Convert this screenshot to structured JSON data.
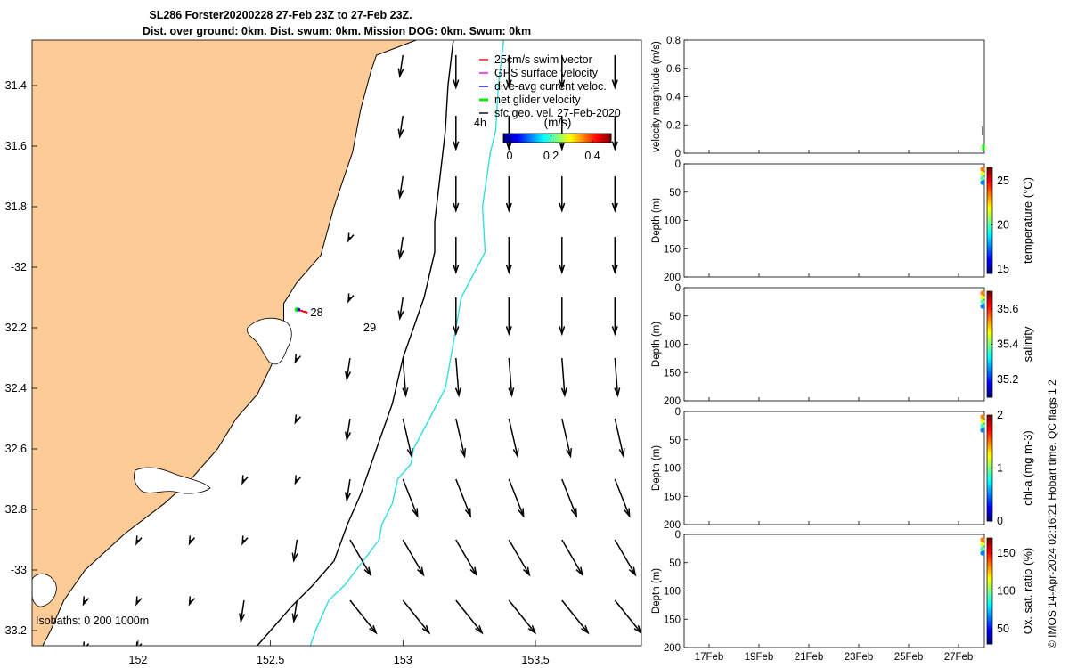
{
  "title": {
    "line1": "SL286 Forster20200228 27-Feb 23Z to 27-Feb 23Z.",
    "line2": "Dist. over ground: 0km. Dist. swum: 0km. Mission DOG: 0km. Swum: 0km"
  },
  "colors": {
    "land": "#fdcb96",
    "isobath_200": "#000000",
    "isobath_1000": "#33dddd",
    "swim_vector": "#ff0000",
    "gps_surface_velocity": "#ff00ff",
    "dive_avg_current": "#0000ff",
    "net_glider_velocity": "#00ee00",
    "sfc_geo_vel": "#000000",
    "colormap": [
      "#00007f",
      "#0000ff",
      "#007fff",
      "#00ffff",
      "#7fff7f",
      "#ffff00",
      "#ff7f00",
      "#ff0000",
      "#7f0000"
    ]
  },
  "legend": {
    "items": [
      {
        "label": "25cm/s swim vector",
        "color": "#ff0000"
      },
      {
        "label": "GPS surface velocity",
        "color": "#ff00ff"
      },
      {
        "label": "dive-avg current veloc.",
        "color": "#0000ff"
      },
      {
        "label": "net glider velocity",
        "color": "#00ee00"
      },
      {
        "label": "sfc geo. vel. 27-Feb-2020",
        "color": "#000000"
      }
    ],
    "time_label": "4h",
    "colorbar_unit": "(m/s)",
    "colorbar_ticks": [
      "0",
      "0.2",
      "0.4"
    ],
    "colorbar_tick_values": [
      0,
      0.2,
      0.4
    ],
    "colorbar_range": [
      -0.03,
      0.49
    ]
  },
  "isobath_label": "Isobaths: 0   200  1000m",
  "day_labels": [
    {
      "text": "28",
      "lon": 152.63,
      "lat": -32.15
    },
    {
      "text": "29",
      "lon": 152.83,
      "lat": -32.2
    }
  ],
  "chart_data": [
    {
      "type": "map",
      "xlim": [
        151.6,
        153.9
      ],
      "ylim": [
        -33.25,
        -31.25
      ],
      "x_ticks": [
        152,
        152.5,
        153,
        153.5
      ],
      "x_tick_labels": [
        "152",
        "152.5",
        "153",
        "153.5"
      ],
      "y_ticks": [
        -31.4,
        -31.6,
        -31.8,
        -32,
        -32.2,
        -32.4,
        -32.6,
        -32.8,
        -33,
        -33.2
      ],
      "y_tick_labels": [
        "31.4",
        "31.6",
        "31.8",
        "-32",
        "32.2",
        "32.4",
        "32.6",
        "32.8",
        "-33",
        "33.2"
      ],
      "coastline": [
        [
          153.05,
          -31.25
        ],
        [
          152.9,
          -31.3
        ],
        [
          152.88,
          -31.35
        ],
        [
          152.84,
          -31.48
        ],
        [
          152.81,
          -31.62
        ],
        [
          152.74,
          -31.8
        ],
        [
          152.69,
          -31.96
        ],
        [
          152.6,
          -32.05
        ],
        [
          152.55,
          -32.12
        ],
        [
          152.55,
          -32.22
        ],
        [
          152.5,
          -32.33
        ],
        [
          152.45,
          -32.42
        ],
        [
          152.37,
          -32.5
        ],
        [
          152.3,
          -32.6
        ],
        [
          152.2,
          -32.7
        ],
        [
          152.1,
          -32.78
        ],
        [
          151.95,
          -32.88
        ],
        [
          151.8,
          -33.0
        ],
        [
          151.72,
          -33.1
        ],
        [
          151.67,
          -33.2
        ],
        [
          151.64,
          -33.25
        ]
      ],
      "isobath_200": [
        [
          153.19,
          -31.25
        ],
        [
          153.17,
          -31.4
        ],
        [
          153.16,
          -31.55
        ],
        [
          153.14,
          -31.7
        ],
        [
          153.12,
          -31.85
        ],
        [
          153.12,
          -31.95
        ],
        [
          153.08,
          -32.1
        ],
        [
          153.0,
          -32.3
        ],
        [
          152.96,
          -32.45
        ],
        [
          152.9,
          -32.6
        ],
        [
          152.84,
          -32.75
        ],
        [
          152.79,
          -32.85
        ],
        [
          152.74,
          -32.97
        ],
        [
          152.66,
          -33.05
        ],
        [
          152.58,
          -33.12
        ],
        [
          152.5,
          -33.2
        ],
        [
          152.45,
          -33.25
        ]
      ],
      "isobath_1000": [
        [
          153.38,
          -31.25
        ],
        [
          153.36,
          -31.4
        ],
        [
          153.35,
          -31.55
        ],
        [
          153.33,
          -31.62
        ],
        [
          153.3,
          -31.8
        ],
        [
          153.31,
          -31.95
        ],
        [
          153.22,
          -32.1
        ],
        [
          153.19,
          -32.25
        ],
        [
          153.16,
          -32.4
        ],
        [
          153.1,
          -32.5
        ],
        [
          153.04,
          -32.6
        ],
        [
          153.03,
          -32.65
        ],
        [
          152.98,
          -32.7
        ],
        [
          152.96,
          -32.78
        ],
        [
          152.92,
          -32.85
        ],
        [
          152.91,
          -32.9
        ],
        [
          152.85,
          -32.97
        ],
        [
          152.78,
          -33.05
        ],
        [
          152.72,
          -33.1
        ],
        [
          152.67,
          -33.2
        ],
        [
          152.65,
          -33.25
        ]
      ],
      "glider_track": [
        [
          152.6,
          -32.14
        ],
        [
          152.64,
          -32.15
        ]
      ],
      "geo_vel_grid": {
        "lons": [
          151.8,
          152.0,
          152.2,
          152.4,
          152.6,
          152.8,
          153.0,
          153.2,
          153.4,
          153.6,
          153.8
        ],
        "lats": [
          -31.3,
          -31.5,
          -31.7,
          -31.9,
          -32.1,
          -32.3,
          -32.5,
          -32.7,
          -32.9,
          -33.1,
          -33.25
        ],
        "note_units": "u,v in m/s"
      }
    },
    {
      "type": "line",
      "ylabel": "velocity magnitude (m/s)",
      "ylim": [
        0,
        0.8
      ],
      "y_ticks": [
        0,
        0.2,
        0.4,
        0.6,
        0.8
      ],
      "y_tick_labels": [
        "0",
        "0.2",
        "0.4",
        "0.6",
        "0.8"
      ],
      "series": [
        {
          "x": [
            "27Feb"
          ],
          "values": [
            0.02
          ]
        }
      ]
    },
    {
      "type": "scatter",
      "ylabel": "Depth (m)",
      "ylim": [
        0,
        200
      ],
      "y_ticks": [
        0,
        50,
        100,
        150,
        200
      ],
      "y_tick_labels": [
        "0",
        "50",
        "100",
        "150",
        "200"
      ],
      "colorbar_label": "temperature (°C)",
      "colorbar_range": [
        14.5,
        26.5
      ],
      "colorbar_ticks": [
        15,
        20,
        25
      ],
      "colorbar_tick_labels": [
        "15",
        "20",
        "25"
      ]
    },
    {
      "type": "scatter",
      "ylabel": "Depth (m)",
      "ylim": [
        0,
        200
      ],
      "y_ticks": [
        0,
        50,
        100,
        150,
        200
      ],
      "y_tick_labels": [
        "0",
        "50",
        "100",
        "150",
        "200"
      ],
      "colorbar_label": "salinity",
      "colorbar_range": [
        35.1,
        35.7
      ],
      "colorbar_ticks": [
        35.2,
        35.4,
        35.6
      ],
      "colorbar_tick_labels": [
        "35.2",
        "35.4",
        "35.6"
      ]
    },
    {
      "type": "scatter",
      "ylabel": "Depth (m)",
      "ylim": [
        0,
        200
      ],
      "y_ticks": [
        0,
        50,
        100,
        150,
        200
      ],
      "y_tick_labels": [
        "0",
        "50",
        "100",
        "150",
        "200"
      ],
      "colorbar_label": "chl-a (mg m-3)",
      "colorbar_range": [
        0,
        2
      ],
      "colorbar_ticks": [
        0,
        1,
        2
      ],
      "colorbar_tick_labels": [
        "0",
        "1",
        "2"
      ]
    },
    {
      "type": "scatter",
      "ylabel": "Depth (m)",
      "ylim": [
        0,
        200
      ],
      "y_ticks": [
        0,
        50,
        100,
        150,
        200
      ],
      "y_tick_labels": [
        "0",
        "50",
        "100",
        "150",
        "200"
      ],
      "colorbar_label": "Ox. sat. ratio (%)",
      "colorbar_range": [
        30,
        170
      ],
      "colorbar_ticks": [
        50,
        100,
        150
      ],
      "colorbar_tick_labels": [
        "50",
        "100",
        "150"
      ],
      "x_tick_labels": [
        "17Feb",
        "19Feb",
        "21Feb",
        "23Feb",
        "25Feb",
        "27Feb"
      ]
    }
  ],
  "footer_text": "© IMOS 14-Apr-2024 02:16:21 Hobart time. QC flags 1  2"
}
